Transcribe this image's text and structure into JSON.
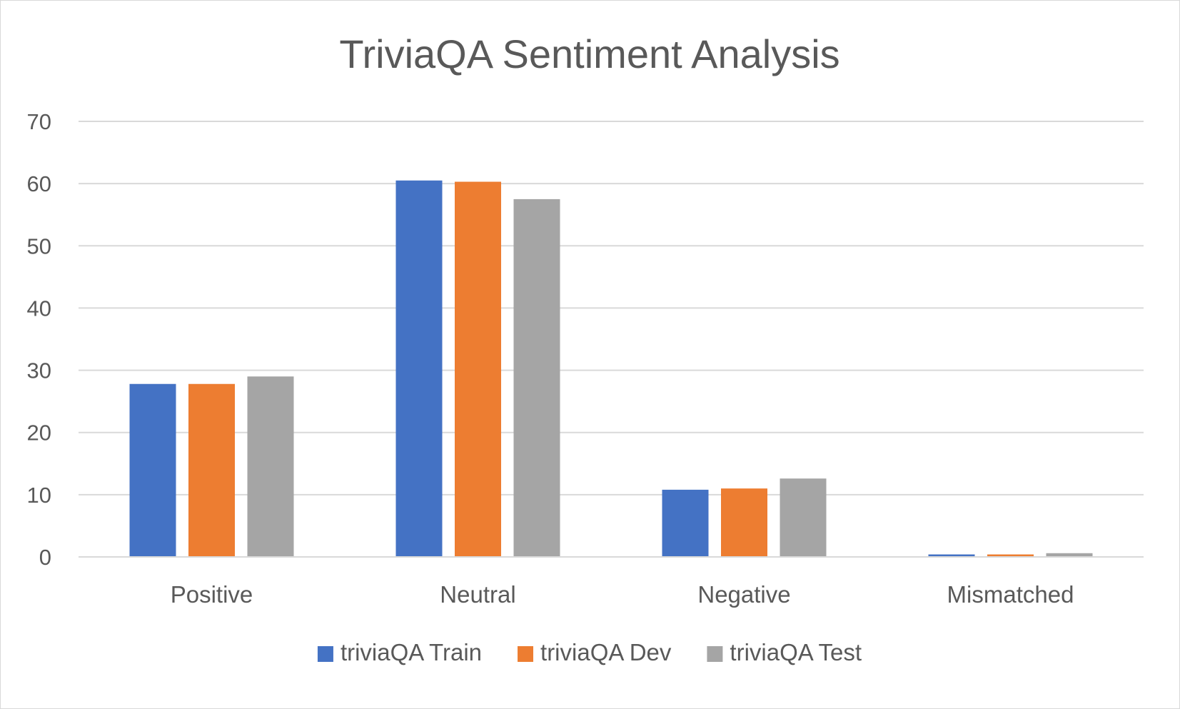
{
  "chart_data": {
    "type": "bar",
    "title": "TriviaQA Sentiment Analysis",
    "xlabel": "",
    "ylabel": "",
    "categories": [
      "Positive",
      "Neutral",
      "Negative",
      "Mismatched"
    ],
    "series": [
      {
        "name": "triviaQA Train",
        "color": "#4472C4",
        "values": [
          27.8,
          60.5,
          10.8,
          0.4
        ]
      },
      {
        "name": "triviaQA Dev",
        "color": "#ED7D31",
        "values": [
          27.8,
          60.3,
          11.0,
          0.4
        ]
      },
      {
        "name": "triviaQA Test",
        "color": "#A5A5A5",
        "values": [
          29.0,
          57.5,
          12.6,
          0.6
        ]
      }
    ],
    "ylim": [
      0,
      70
    ],
    "yticks": [
      0,
      10,
      20,
      30,
      40,
      50,
      60,
      70
    ],
    "grid": true,
    "legend_position": "bottom",
    "gridline_color": "#d9d9d9",
    "text_color": "#595959"
  }
}
